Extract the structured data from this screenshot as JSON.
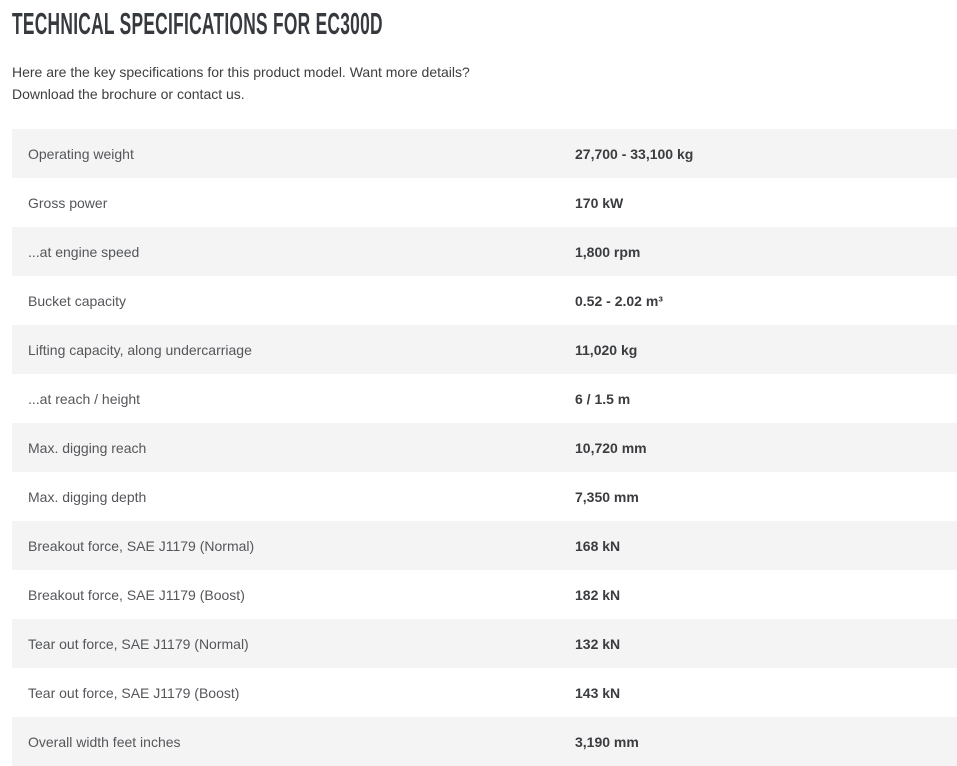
{
  "page": {
    "title": "TECHNICAL SPECIFICATIONS FOR EC300D",
    "intro_line1": "Here are the key specifications for this product model. Want more details?",
    "intro_line2": "Download the brochure or contact us."
  },
  "colors": {
    "title": "#363a3f",
    "intro": "#3e3e3e",
    "label": "#54565a",
    "value": "#3a3c3f",
    "stripe": "#f4f4f4",
    "background": "#ffffff"
  },
  "spec_table": {
    "rows": [
      {
        "label": "Operating weight",
        "value": "27,700 - 33,100 kg"
      },
      {
        "label": "Gross power",
        "value": "170 kW"
      },
      {
        "label": "...at engine speed",
        "value": "1,800 rpm"
      },
      {
        "label": "Bucket capacity",
        "value": "0.52 - 2.02 m³"
      },
      {
        "label": "Lifting capacity, along undercarriage",
        "value": "11,020 kg"
      },
      {
        "label": "...at reach / height",
        "value": "6 / 1.5 m"
      },
      {
        "label": "Max. digging reach",
        "value": "10,720 mm"
      },
      {
        "label": "Max. digging depth",
        "value": "7,350 mm"
      },
      {
        "label": "Breakout force, SAE J1179 (Normal)",
        "value": "168 kN"
      },
      {
        "label": "Breakout force, SAE J1179 (Boost)",
        "value": "182 kN"
      },
      {
        "label": "Tear out force, SAE J1179 (Normal)",
        "value": "132 kN"
      },
      {
        "label": "Tear out force, SAE J1179 (Boost)",
        "value": "143 kN"
      },
      {
        "label": "Overall width feet inches",
        "value": "3,190 mm"
      }
    ]
  }
}
